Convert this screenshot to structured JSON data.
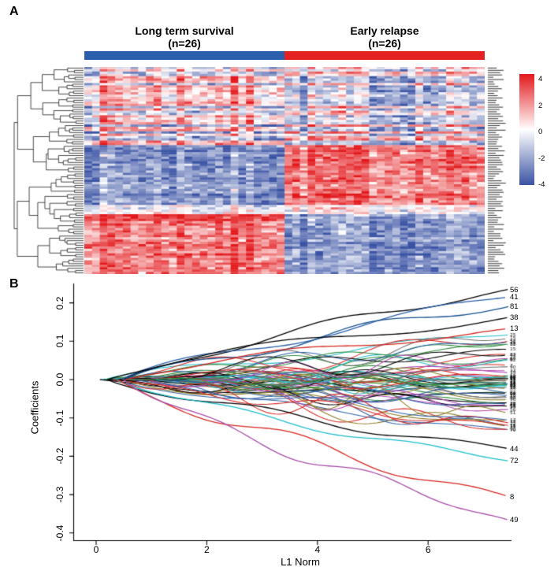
{
  "panels": {
    "a": "A",
    "b": "B"
  },
  "panel_a": {
    "left_group": {
      "title": "Long term survival",
      "subtitle": "(n=26)",
      "bar_color": "#2B5EAC"
    },
    "right_group": {
      "title": "Early relapse",
      "subtitle": "(n=26)",
      "bar_color": "#E32221"
    }
  },
  "chart_data": [
    {
      "type": "heatmap",
      "title": "",
      "rows": 90,
      "cols": 52,
      "col_groups": [
        {
          "label": "Long term survival",
          "n": 26
        },
        {
          "label": "Early relapse",
          "n": 26
        }
      ],
      "value_range": [
        -4,
        4
      ],
      "legend_ticks": [
        "4",
        "2",
        "0",
        "-2",
        "-4"
      ],
      "colormap": {
        "high": "#E3191C",
        "mid": "#FFFFFF",
        "low": "#3A53A4"
      },
      "row_dendrogram": true,
      "pattern": {
        "seed": 7,
        "description": "rows 1-34 mixed up/down with strong column stripes; rows 35-60 up-regulated in Early relapse; rows 61-64 weak; rows 65-90 up-regulated in Long term survival"
      }
    },
    {
      "type": "line",
      "title": "",
      "xlabel": "L1 Norm",
      "ylabel": "Coefficients",
      "xlim": [
        -0.2,
        7.6
      ],
      "ylim": [
        -0.42,
        0.26
      ],
      "x_ticks": [
        "0",
        "2",
        "4",
        "6"
      ],
      "y_ticks": [
        "0.2",
        "0.1",
        "0.0",
        "-0.1",
        "-0.2",
        "-0.3",
        "-0.4"
      ],
      "grid": false,
      "legend_position": "none",
      "labeled_series": [
        {
          "label": "56",
          "end_coefficient": 0.235,
          "color": "#000000"
        },
        {
          "label": "41",
          "end_coefficient": 0.215,
          "color": "#2B5FA8"
        },
        {
          "label": "81",
          "end_coefficient": 0.19,
          "color": "#17508F"
        },
        {
          "label": "38",
          "end_coefficient": 0.162,
          "color": "#000000"
        },
        {
          "label": "13",
          "end_coefficient": 0.133,
          "color": "#D6251F"
        },
        {
          "label": "44",
          "end_coefficient": -0.18,
          "color": "#000000"
        },
        {
          "label": "72",
          "end_coefficient": -0.212,
          "color": "#1FBECB"
        },
        {
          "label": "8",
          "end_coefficient": -0.305,
          "color": "#D6251F"
        },
        {
          "label": "49",
          "end_coefficient": -0.366,
          "color": "#A64CA6"
        }
      ],
      "unlabeled_series_count": 60,
      "unlabeled_end_range": [
        -0.155,
        0.125
      ],
      "palette": [
        "#000000",
        "#D6251F",
        "#2E8B3A",
        "#2B5FA8",
        "#1FBECB",
        "#B346B3",
        "#8A7A1E",
        "#6E6E6E"
      ]
    }
  ]
}
